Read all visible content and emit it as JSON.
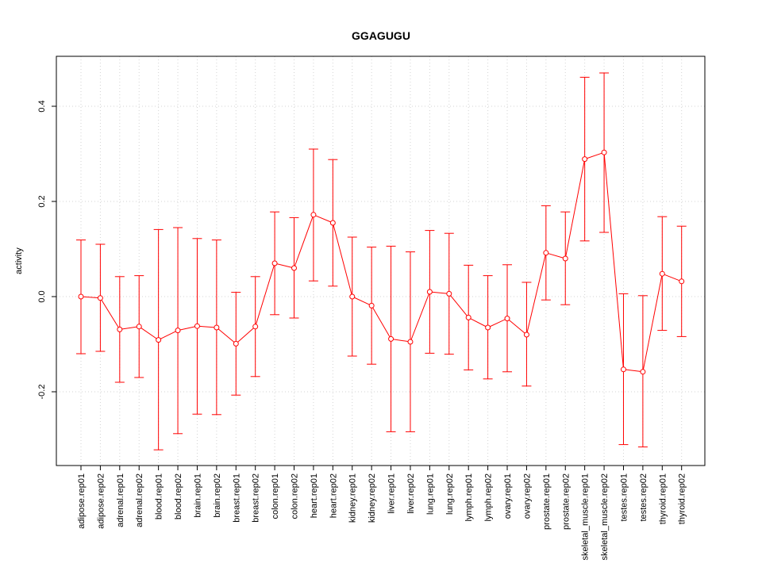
{
  "chart_data": {
    "type": "line",
    "title": "GGAGUGU",
    "xlabel": "",
    "ylabel": "activity",
    "ylim": [
      -0.355,
      0.505
    ],
    "yticks": [
      -0.2,
      0.0,
      0.2,
      0.4
    ],
    "ytick_labels": [
      "-0.2",
      "0.0",
      "0.2",
      "0.4"
    ],
    "grid": true,
    "categories": [
      "adipose.rep01",
      "adipose.rep02",
      "adrenal.rep01",
      "adrenal.rep02",
      "blood.rep01",
      "blood.rep02",
      "brain.rep01",
      "brain.rep02",
      "breast.rep01",
      "breast.rep02",
      "colon.rep01",
      "colon.rep02",
      "heart.rep01",
      "heart.rep02",
      "kidney.rep01",
      "kidney.rep02",
      "liver.rep01",
      "liver.rep02",
      "lung.rep01",
      "lung.rep02",
      "lymph.rep01",
      "lymph.rep02",
      "ovary.rep01",
      "ovary.rep02",
      "prostate.rep01",
      "prostate.rep02",
      "skeletal_muscle.rep01",
      "skeletal_muscle.rep02",
      "testes.rep01",
      "testes.rep02",
      "thyroid.rep01",
      "thyroid.rep02"
    ],
    "series": [
      {
        "name": "activity",
        "color": "#ff0000",
        "values": [
          0.0,
          -0.003,
          -0.069,
          -0.063,
          -0.091,
          -0.071,
          -0.062,
          -0.065,
          -0.099,
          -0.063,
          0.07,
          0.06,
          0.172,
          0.155,
          0.0,
          -0.019,
          -0.089,
          -0.095,
          0.01,
          0.006,
          -0.044,
          -0.065,
          -0.046,
          -0.08,
          0.092,
          0.08,
          0.289,
          0.303,
          -0.153,
          -0.158,
          0.048,
          0.032
        ],
        "upper": [
          0.119,
          0.11,
          0.042,
          0.044,
          0.141,
          0.145,
          0.122,
          0.119,
          0.009,
          0.042,
          0.178,
          0.166,
          0.31,
          0.288,
          0.125,
          0.104,
          0.106,
          0.094,
          0.139,
          0.133,
          0.066,
          0.044,
          0.067,
          0.03,
          0.191,
          0.178,
          0.461,
          0.47,
          0.006,
          0.002,
          0.168,
          0.148
        ],
        "lower": [
          -0.12,
          -0.115,
          -0.18,
          -0.17,
          -0.322,
          -0.288,
          -0.247,
          -0.248,
          -0.207,
          -0.168,
          -0.038,
          -0.045,
          0.033,
          0.022,
          -0.125,
          -0.142,
          -0.284,
          -0.284,
          -0.119,
          -0.121,
          -0.154,
          -0.173,
          -0.158,
          -0.188,
          -0.007,
          -0.017,
          0.117,
          0.135,
          -0.311,
          -0.316,
          -0.071,
          -0.084
        ]
      }
    ]
  }
}
